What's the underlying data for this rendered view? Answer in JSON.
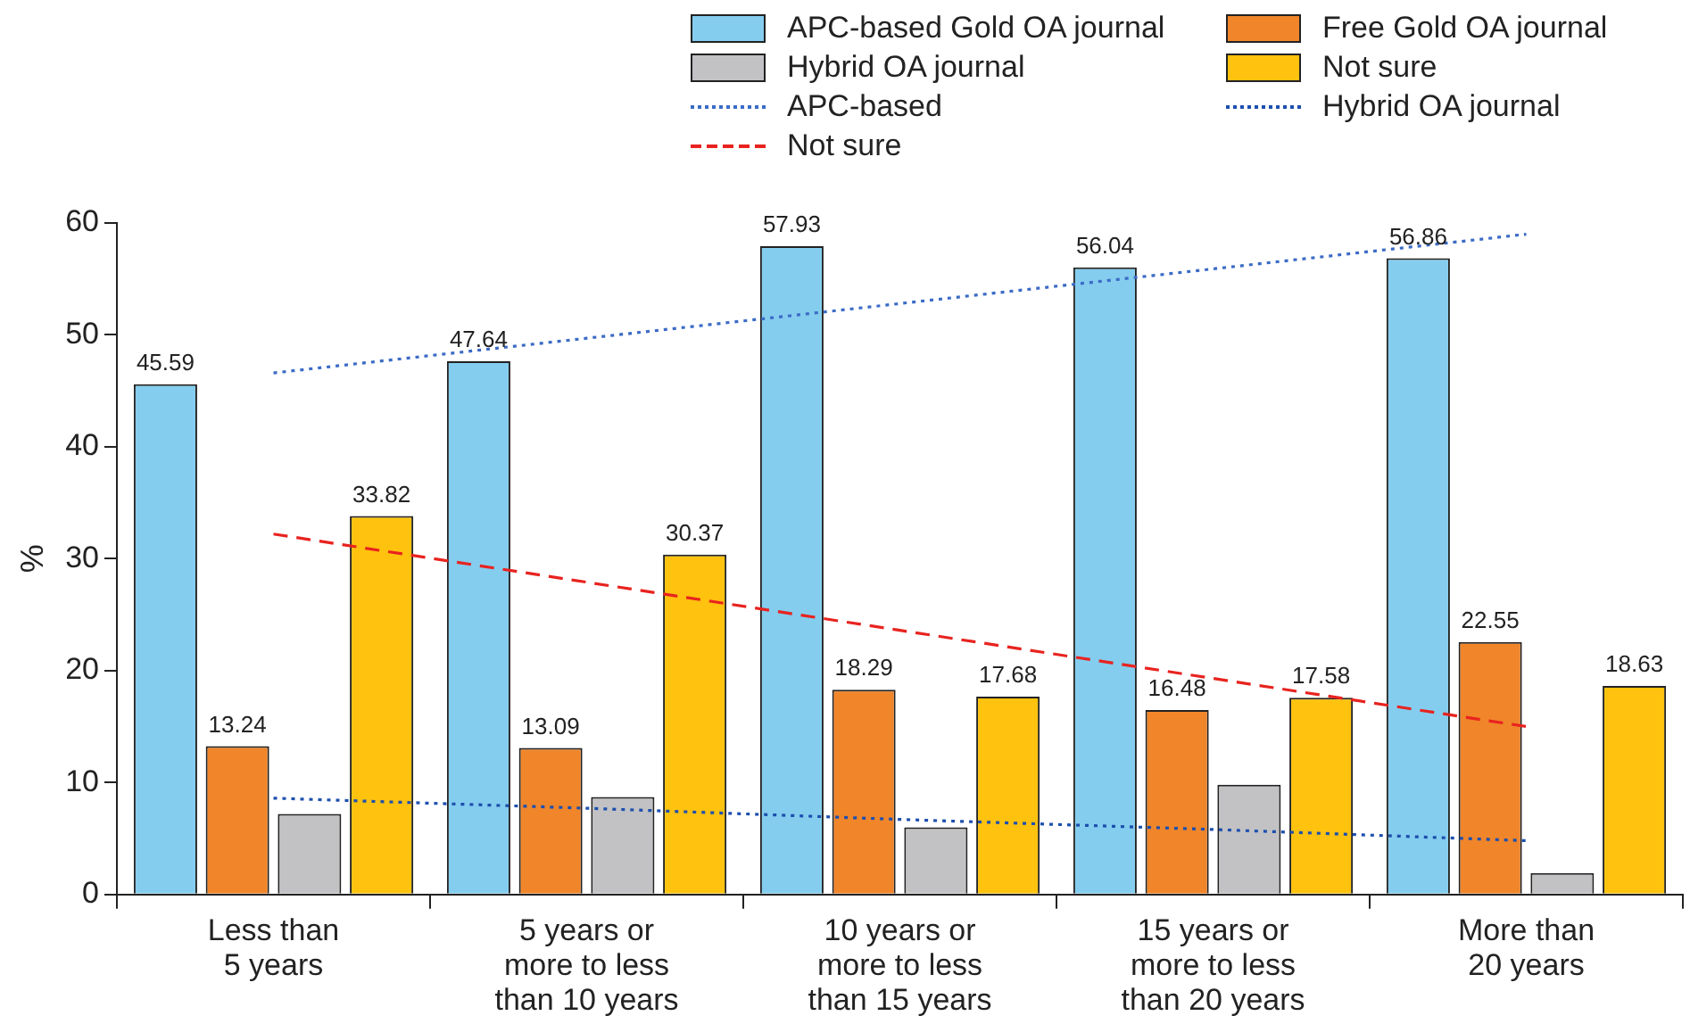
{
  "chart_data": {
    "type": "bar",
    "ylabel": "%",
    "categories": [
      "Less than\n5 years",
      "5 years or\nmore to less\nthan 10 years",
      "10 years or\nmore to less\nthan 15 years",
      "15 years or\nmore to less\nthan 20 years",
      "More than\n20 years"
    ],
    "series": [
      {
        "name": "APC-based Gold OA journal",
        "color": "#84cdee",
        "values": [
          45.59,
          47.64,
          57.93,
          56.04,
          56.86
        ],
        "value_labels": [
          "45.59",
          "47.64",
          "57.93",
          "56.04",
          "56.86"
        ]
      },
      {
        "name": "Free Gold OA journal",
        "color": "#f0852a",
        "values": [
          13.24,
          13.09,
          18.29,
          16.48,
          22.55
        ],
        "value_labels": [
          "13.24",
          "13.09",
          "18.29",
          "16.48",
          "22.55"
        ]
      },
      {
        "name": "Hybrid OA journal",
        "color": "#c2c2c4",
        "values": [
          7.2,
          8.7,
          6.0,
          9.8,
          1.9
        ]
      },
      {
        "name": "Not sure",
        "color": "#ffc20e",
        "values": [
          33.82,
          30.37,
          17.68,
          17.58,
          18.63
        ],
        "value_labels": [
          "33.82",
          "30.37",
          "17.68",
          "17.58",
          "18.63"
        ]
      },
      {
        "type": "line",
        "name": "APC-based",
        "color": "#3b6bc6",
        "line_style": "dotted",
        "values": [
          46.6,
          49.7,
          52.8,
          55.9,
          59.0
        ]
      },
      {
        "type": "line",
        "name": "Hybrid OA journal",
        "color": "#1d4fae",
        "line_style": "dotted",
        "values": [
          8.6,
          7.7,
          6.7,
          5.8,
          4.8
        ]
      },
      {
        "type": "line",
        "name": "Not sure",
        "color": "#e8231f",
        "line_style": "dashed",
        "values": [
          32.2,
          27.9,
          23.6,
          19.3,
          15.0
        ]
      }
    ],
    "ylim": [
      0,
      60
    ],
    "yticks": [
      0,
      10,
      20,
      30,
      40,
      50,
      60
    ],
    "grid": false,
    "legend": "top right",
    "marker": "none"
  }
}
